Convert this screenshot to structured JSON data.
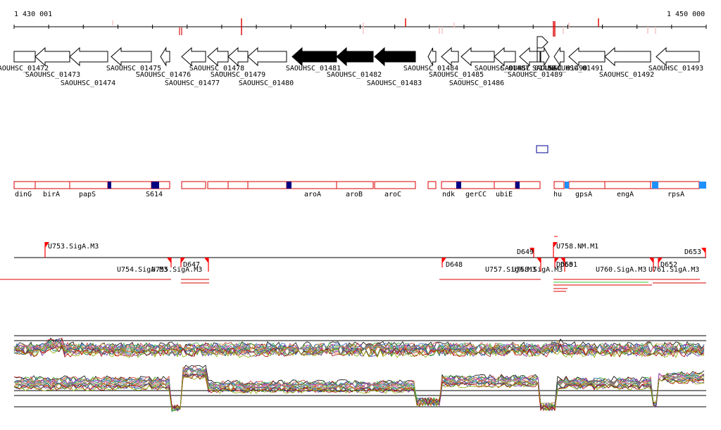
{
  "ruler": {
    "start_label": "1 430 001",
    "end_label": "1 450 000"
  },
  "genes": [
    {
      "id": "SAOUHSC_01472"
    },
    {
      "id": "SAOUHSC_01473"
    },
    {
      "id": "SAOUHSC_01474"
    },
    {
      "id": "SAOUHSC_01475"
    },
    {
      "id": "SAOUHSC_01476"
    },
    {
      "id": "SAOUHSC_01477"
    },
    {
      "id": "SAOUHSC_01478"
    },
    {
      "id": "SAOUHSC_01479"
    },
    {
      "id": "SAOUHSC_01480"
    },
    {
      "id": "SAOUHSC_01481"
    },
    {
      "id": "SAOUHSC_01482"
    },
    {
      "id": "SAOUHSC_01483"
    },
    {
      "id": "SAOUHSC_01484"
    },
    {
      "id": "SAOUHSC_01485"
    },
    {
      "id": "SAOUHSC_01486"
    },
    {
      "id": "SAOUHSC_01487"
    },
    {
      "id": "SAOUHSC_01488"
    },
    {
      "id": "SAOUHSC_01489"
    },
    {
      "id": "SAOUHSC_01490"
    },
    {
      "id": "SAOUHSC_01491"
    },
    {
      "id": "SAOUHSC_01492"
    },
    {
      "id": "SAOUHSC_01493"
    }
  ],
  "operon_genes": [
    {
      "name": "dinG"
    },
    {
      "name": "birA"
    },
    {
      "name": "papS"
    },
    {
      "name": "S614"
    },
    {
      "name": "aroA"
    },
    {
      "name": "aroB"
    },
    {
      "name": "aroC"
    },
    {
      "name": "ndk"
    },
    {
      "name": "gerCC"
    },
    {
      "name": "ubiE"
    },
    {
      "name": "hu"
    },
    {
      "name": "gpsA"
    },
    {
      "name": "engA"
    },
    {
      "name": "rpsA"
    }
  ],
  "features_above": [
    {
      "name": "U753.SigA.M3"
    },
    {
      "name": "D649"
    },
    {
      "name": "U758.NM.M1"
    },
    {
      "name": "D653"
    }
  ],
  "features_below": [
    {
      "name": "U754.SigA.M3"
    },
    {
      "name": "U755.SigA.M3"
    },
    {
      "name": "D647"
    },
    {
      "name": "D648"
    },
    {
      "name": "U757.SigA.M3"
    },
    {
      "name": "U758.SigA.M3"
    },
    {
      "name": "D650"
    },
    {
      "name": "D651"
    },
    {
      "name": "U760.SigA.M3"
    },
    {
      "name": "U761.SigA.M3"
    },
    {
      "name": "D652"
    }
  ],
  "colors": {
    "gene_outline": "#000000",
    "gene_highlight": "#000000",
    "operon_outline": "#dd0000",
    "dark_marker": "#000080",
    "light_marker": "#1e90ff",
    "feature_red": "#ff0000",
    "green_line": "#33cc33"
  }
}
